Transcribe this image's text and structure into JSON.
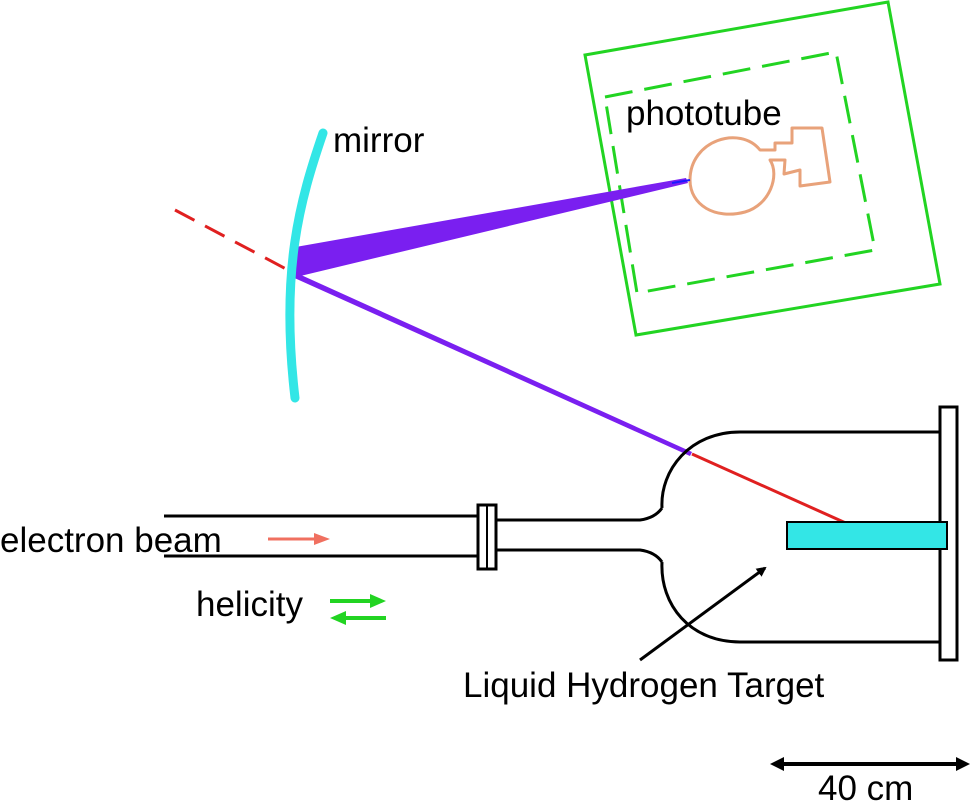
{
  "labels": {
    "mirror": "mirror",
    "phototube": "phototube",
    "electron_beam": "electron beam",
    "helicity": "helicity",
    "target": "Liquid Hydrogen Target",
    "scale": "40 cm"
  },
  "colors": {
    "mirror": "#33e6e6",
    "target": "#33e6e6",
    "light_cone": "#7a1ff0",
    "scattered_path": "#e02020",
    "box": "#22d422",
    "phototube": "#e8a27a",
    "beam_arrow": "#f07060",
    "helicity_arrows": "#22d422",
    "outline": "#000000"
  }
}
